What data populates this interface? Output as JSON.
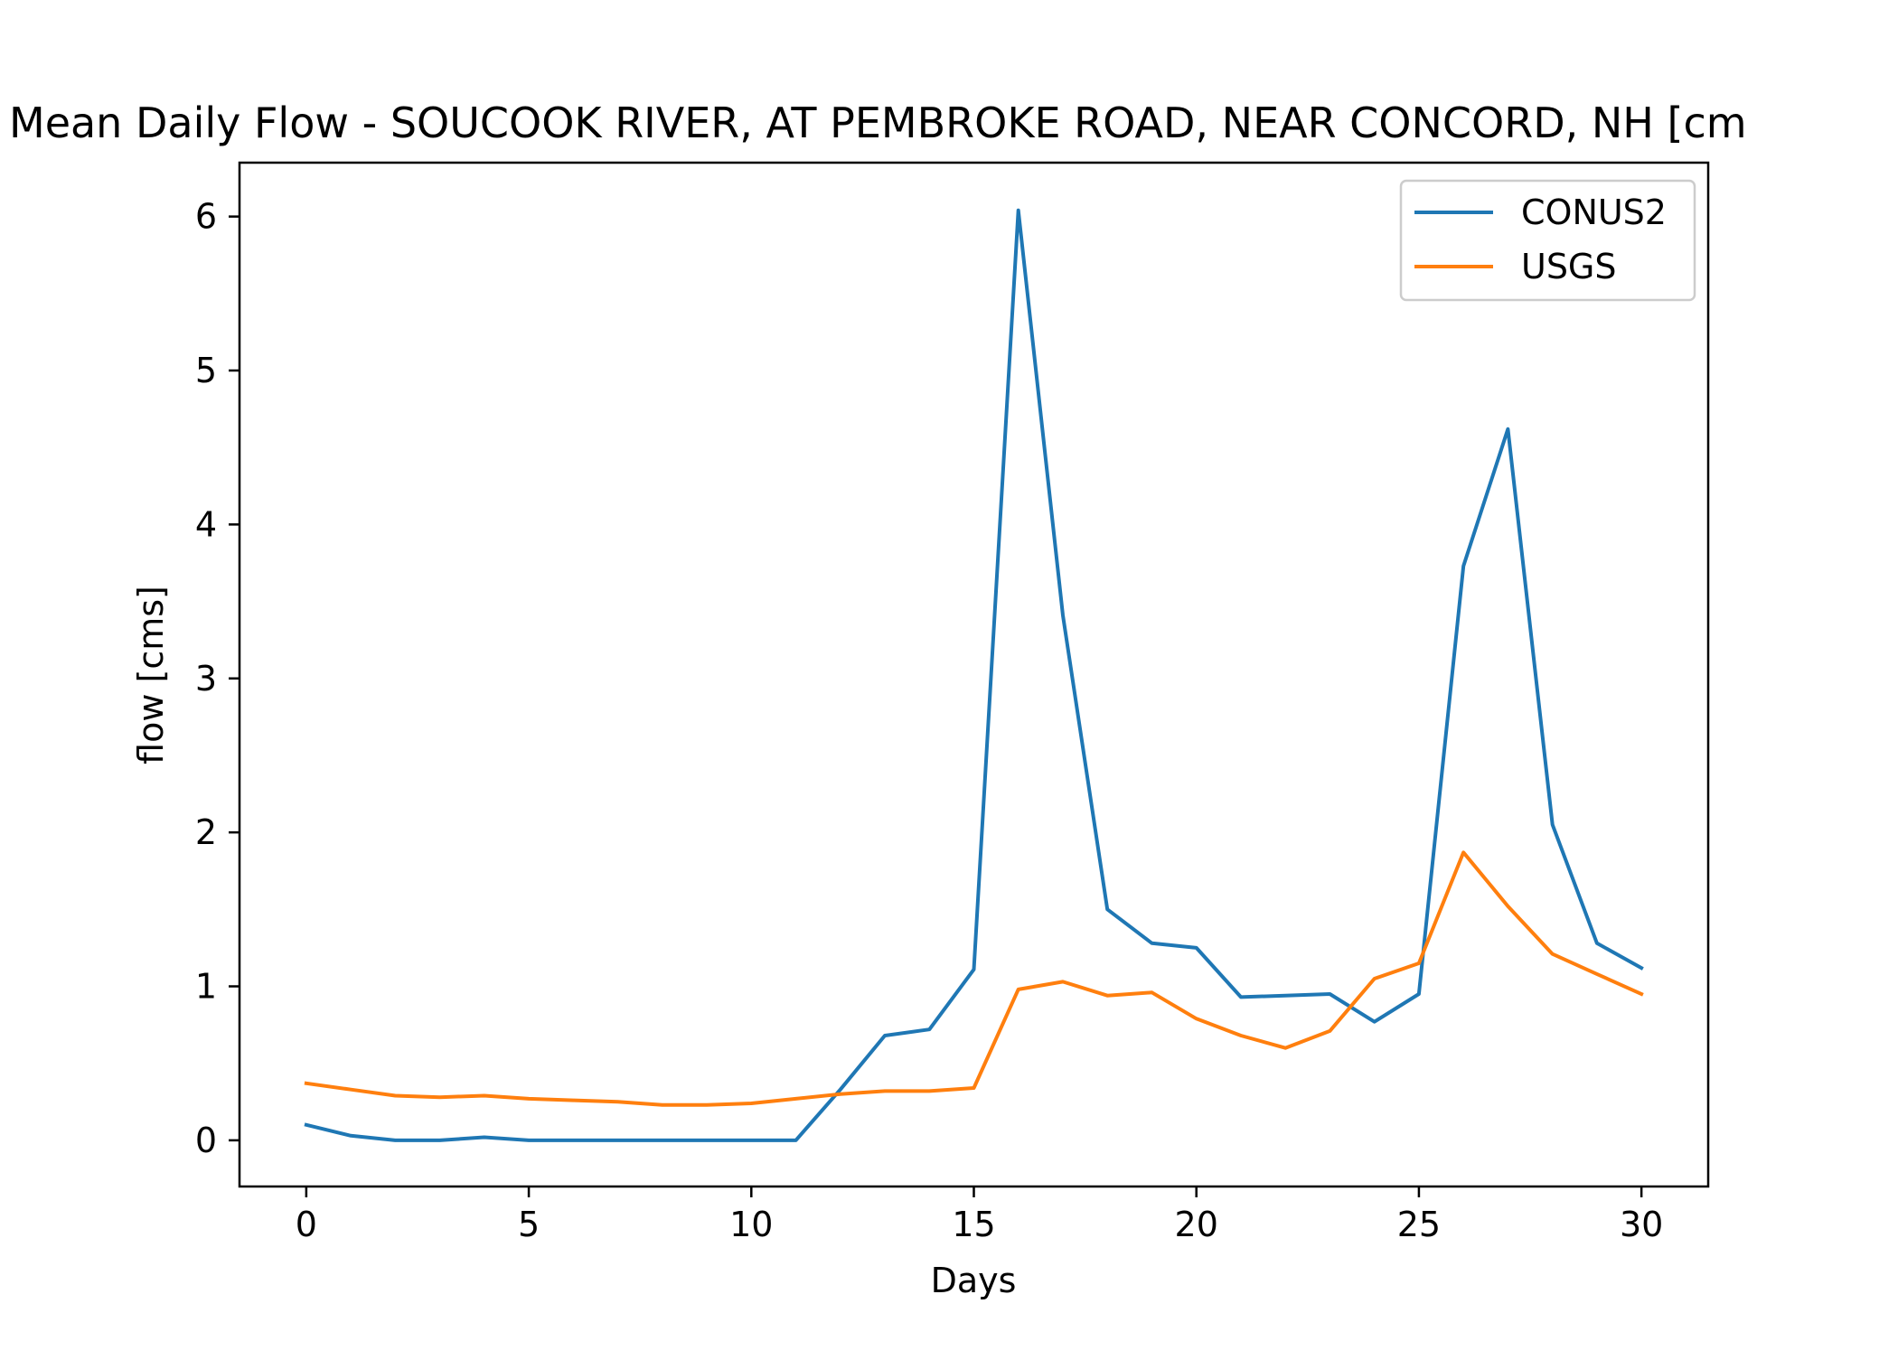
{
  "chart_data": {
    "type": "line",
    "title": "Mean Daily Flow - SOUCOOK RIVER, AT PEMBROKE ROAD, NEAR CONCORD, NH [cm",
    "xlabel": "Days",
    "ylabel": "flow [cms]",
    "xlim": [
      -1.5,
      31.5
    ],
    "ylim": [
      -0.3,
      6.35
    ],
    "x_ticks": [
      0,
      5,
      10,
      15,
      20,
      25,
      30
    ],
    "y_ticks": [
      0,
      1,
      2,
      3,
      4,
      5,
      6
    ],
    "grid": false,
    "legend_position": "top-right",
    "x": [
      0,
      1,
      2,
      3,
      4,
      5,
      6,
      7,
      8,
      9,
      10,
      11,
      12,
      13,
      14,
      15,
      16,
      17,
      18,
      19,
      20,
      21,
      22,
      23,
      24,
      25,
      26,
      27,
      28,
      29,
      30
    ],
    "series": [
      {
        "name": "CONUS2",
        "color": "#1f77b4",
        "values": [
          0.1,
          0.03,
          0.0,
          0.0,
          0.02,
          0.0,
          0.0,
          0.0,
          0.0,
          0.0,
          0.0,
          0.0,
          0.33,
          0.68,
          0.72,
          1.11,
          6.04,
          3.41,
          1.5,
          1.28,
          1.25,
          0.93,
          0.94,
          0.95,
          0.77,
          0.95,
          3.73,
          4.62,
          2.05,
          1.28,
          1.12
        ]
      },
      {
        "name": "USGS",
        "color": "#ff7f0e",
        "values": [
          0.37,
          0.33,
          0.29,
          0.28,
          0.29,
          0.27,
          0.26,
          0.25,
          0.23,
          0.23,
          0.24,
          0.27,
          0.3,
          0.32,
          0.32,
          0.34,
          0.98,
          1.03,
          0.94,
          0.96,
          0.79,
          0.68,
          0.6,
          0.71,
          1.05,
          1.15,
          1.87,
          1.52,
          1.21,
          1.08,
          0.95
        ]
      }
    ]
  }
}
